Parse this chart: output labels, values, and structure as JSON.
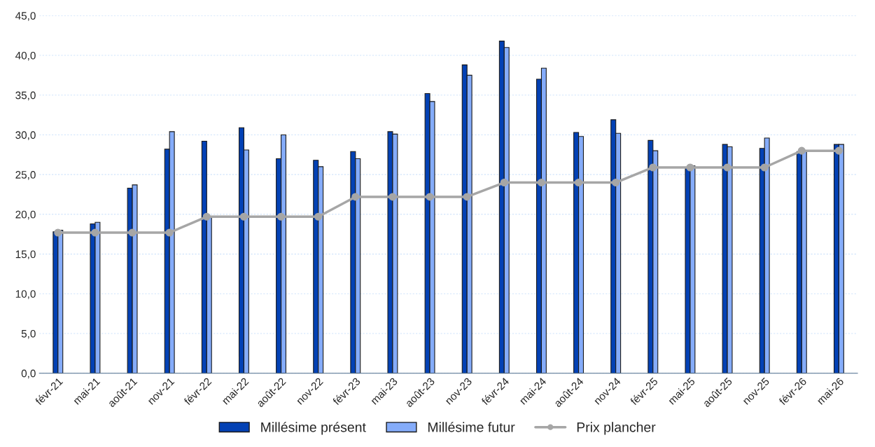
{
  "chart_data": {
    "type": "bar",
    "categories": [
      "févr-21",
      "mai-21",
      "août-21",
      "nov-21",
      "févr-22",
      "mai-22",
      "août-22",
      "nov-22",
      "févr-23",
      "mai-23",
      "août-23",
      "nov-23",
      "févr-24",
      "mai-24",
      "août-24",
      "nov-24",
      "févr-25",
      "mai-25",
      "août-25",
      "nov-25",
      "févr-26",
      "mai-26"
    ],
    "series": [
      {
        "name": "Millésime présent",
        "color": "#0341b4",
        "values": [
          17.8,
          18.8,
          23.3,
          28.2,
          29.2,
          30.9,
          27.0,
          26.8,
          27.9,
          30.4,
          35.2,
          38.8,
          41.8,
          37.0,
          30.3,
          31.9,
          29.3,
          25.9,
          28.8,
          28.3,
          27.9,
          28.8
        ]
      },
      {
        "name": "Millésime futur",
        "color": "#85acfa",
        "values": [
          18.0,
          19.0,
          23.7,
          30.4,
          19.7,
          28.1,
          30.0,
          26.0,
          27.0,
          30.1,
          34.2,
          37.5,
          41.0,
          38.4,
          29.8,
          30.2,
          28.0,
          26.1,
          28.5,
          29.6,
          27.9,
          28.8
        ]
      },
      {
        "name": "Prix plancher",
        "type": "line",
        "color": "#a6a6a6",
        "marker": "circle",
        "values": [
          17.7,
          17.7,
          17.7,
          17.7,
          19.7,
          19.7,
          19.7,
          19.7,
          22.2,
          22.2,
          22.2,
          22.2,
          24.0,
          24.0,
          24.0,
          24.0,
          25.9,
          25.9,
          25.9,
          25.9,
          28.0,
          28.0
        ]
      }
    ],
    "ylim": [
      0,
      45
    ],
    "yticks": [
      {
        "value": 0,
        "label": "0,0"
      },
      {
        "value": 5,
        "label": "5,0"
      },
      {
        "value": 10,
        "label": "10,0"
      },
      {
        "value": 15,
        "label": "15,0"
      },
      {
        "value": 20,
        "label": "20,0"
      },
      {
        "value": 25,
        "label": "25,0"
      },
      {
        "value": 30,
        "label": "30,0"
      },
      {
        "value": 35,
        "label": "35,0"
      },
      {
        "value": 40,
        "label": "40,0"
      },
      {
        "value": 45,
        "label": "45,0"
      }
    ],
    "grid": "y",
    "legend": "bottom"
  }
}
